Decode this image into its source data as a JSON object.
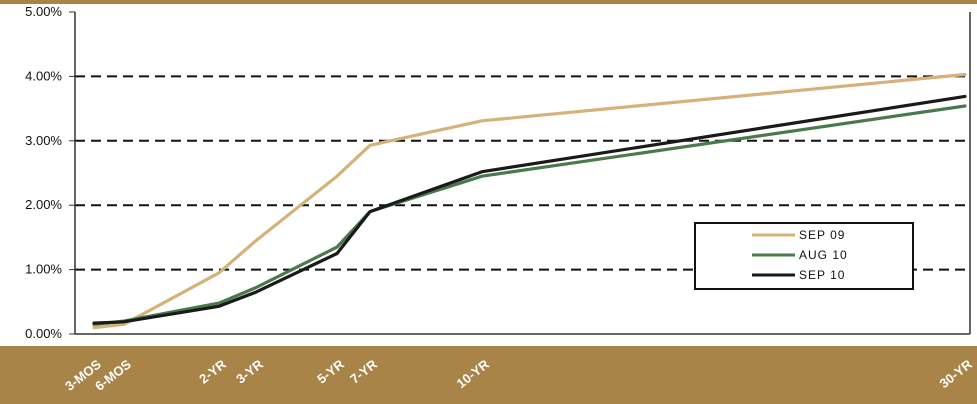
{
  "chart_data": {
    "type": "line",
    "title": "",
    "xlabel": "",
    "ylabel": "",
    "categories": [
      "3-MOS",
      "6-MOS",
      "2-YR",
      "3-YR",
      "5-YR",
      "7-YR",
      "10-YR",
      "30-YR"
    ],
    "ylim": [
      0,
      5
    ],
    "yticks": [
      "0.00%",
      "1.00%",
      "2.00%",
      "3.00%",
      "4.00%",
      "5.00%"
    ],
    "grid": "horizontal dashed",
    "legend_position": "lower-right",
    "series": [
      {
        "name": "SEP 09",
        "color": "#d4b27a",
        "values": [
          0.1,
          0.15,
          0.95,
          1.45,
          2.45,
          2.93,
          3.31,
          4.03
        ]
      },
      {
        "name": "AUG 10",
        "color": "#4a7a4c",
        "values": [
          0.15,
          0.2,
          0.48,
          0.72,
          1.35,
          1.9,
          2.45,
          3.54
        ]
      },
      {
        "name": "SEP 10",
        "color": "#1a1a1a",
        "values": [
          0.17,
          0.19,
          0.43,
          0.65,
          1.25,
          1.9,
          2.52,
          3.69
        ]
      }
    ]
  }
}
